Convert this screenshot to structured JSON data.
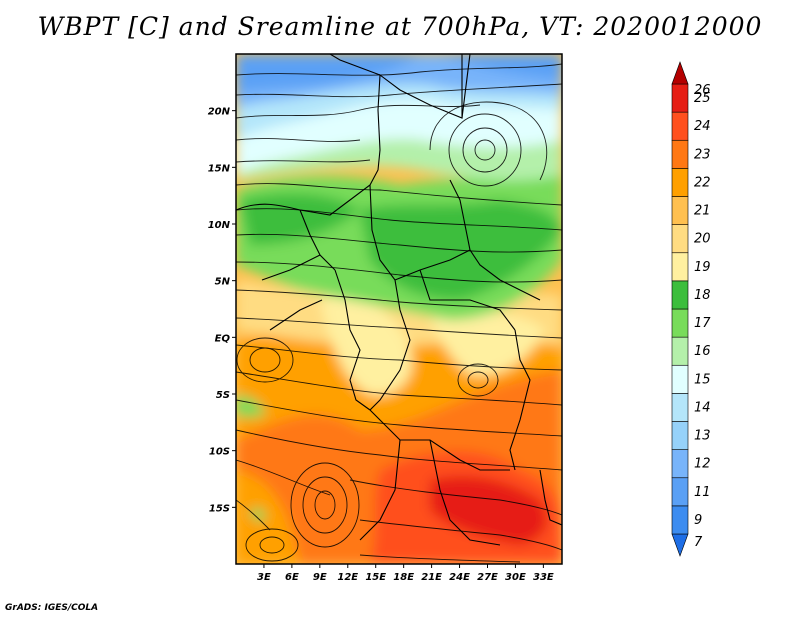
{
  "title": "WBPT [C] and Sreamline at 700hPa, VT: 2020012000",
  "footer": "GrADS: IGES/COLA",
  "map": {
    "lat_labels": [
      "20N",
      "15N",
      "10N",
      "5N",
      "EQ",
      "5S",
      "10S",
      "15S"
    ],
    "lat_values": [
      20,
      15,
      10,
      5,
      0,
      -5,
      -10,
      -15
    ],
    "lon_labels": [
      "3E",
      "6E",
      "9E",
      "12E",
      "15E",
      "18E",
      "21E",
      "24E",
      "27E",
      "30E",
      "33E"
    ],
    "lon_values": [
      3,
      6,
      9,
      12,
      15,
      18,
      21,
      24,
      27,
      30,
      33
    ],
    "lon_range": [
      0,
      35
    ],
    "lat_range": [
      -20,
      25
    ],
    "streamlines": "black",
    "borders": "black"
  },
  "colorbar": {
    "labels": [
      "7",
      "9",
      "11",
      "12",
      "13",
      "14",
      "15",
      "16",
      "17",
      "18",
      "19",
      "20",
      "21",
      "22",
      "23",
      "24",
      "25",
      "26"
    ],
    "colors": [
      "#1e6ee6",
      "#3c8cf0",
      "#5aa0f5",
      "#78b4fa",
      "#96d2fa",
      "#b4e6fa",
      "#e1ffff",
      "#b4f0aa",
      "#78dc5a",
      "#3cbe3c",
      "#fff0a0",
      "#ffdc82",
      "#ffc050",
      "#ffa000",
      "#ff7814",
      "#ff501e",
      "#e61e14",
      "#b40000"
    ]
  }
}
